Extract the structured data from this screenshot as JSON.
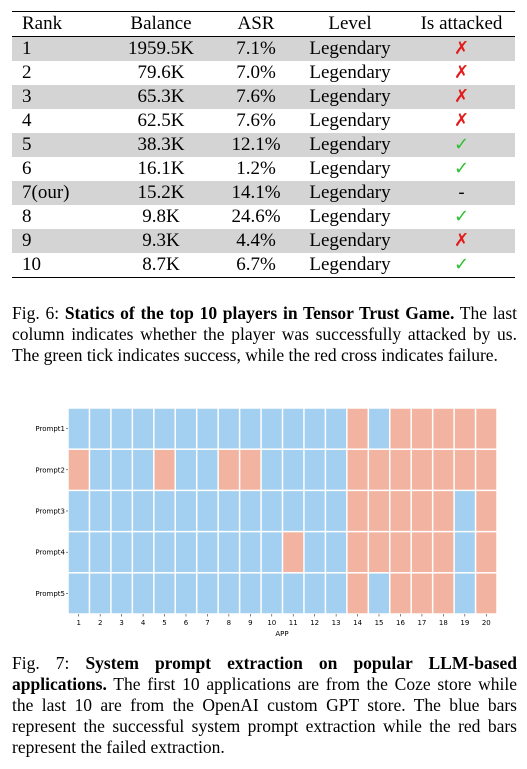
{
  "table": {
    "headers": [
      "Rank",
      "Balance",
      "ASR",
      "Level",
      "Is attacked"
    ],
    "rows": [
      {
        "rank": "1",
        "balance": "1959.5K",
        "asr": "7.1%",
        "level": "Legendary",
        "attacked": "✗",
        "status": "failure"
      },
      {
        "rank": "2",
        "balance": "79.6K",
        "asr": "7.0%",
        "level": "Legendary",
        "attacked": "✗",
        "status": "failure"
      },
      {
        "rank": "3",
        "balance": "65.3K",
        "asr": "7.6%",
        "level": "Legendary",
        "attacked": "✗",
        "status": "failure"
      },
      {
        "rank": "4",
        "balance": "62.5K",
        "asr": "7.6%",
        "level": "Legendary",
        "attacked": "✗",
        "status": "failure"
      },
      {
        "rank": "5",
        "balance": "38.3K",
        "asr": "12.1%",
        "level": "Legendary",
        "attacked": "✓",
        "status": "success"
      },
      {
        "rank": "6",
        "balance": "16.1K",
        "asr": "1.2%",
        "level": "Legendary",
        "attacked": "✓",
        "status": "success"
      },
      {
        "rank": "7(our)",
        "balance": "15.2K",
        "asr": "14.1%",
        "level": "Legendary",
        "attacked": "-",
        "status": "none"
      },
      {
        "rank": "8",
        "balance": "9.8K",
        "asr": "24.6%",
        "level": "Legendary",
        "attacked": "✓",
        "status": "success"
      },
      {
        "rank": "9",
        "balance": "9.3K",
        "asr": "4.4%",
        "level": "Legendary",
        "attacked": "✗",
        "status": "failure"
      },
      {
        "rank": "10",
        "balance": "8.7K",
        "asr": "6.7%",
        "level": "Legendary",
        "attacked": "✓",
        "status": "success"
      }
    ]
  },
  "fig6": {
    "label": "Fig. 6:",
    "title": "Statics of the top 10 players in Tensor Trust Game.",
    "text": "The last column indicates whether the player was successfully attacked by us. The green tick indicates success, while the red cross indicates failure."
  },
  "fig7": {
    "label": "Fig. 7:",
    "title": "System prompt extraction on popular LLM-based applications.",
    "text": "The first 10 applications are from the Coze store while the last 10 are from the OpenAI custom GPT store. The blue bars represent the successful system prompt extraction while the red bars represent the failed extraction."
  },
  "colors": {
    "success": "#a3d0f0",
    "failure": "#f2b3a0",
    "tick_green": "#2fbf2f",
    "cross_red": "#e31b1b",
    "row_shade": "#d4d4d4"
  },
  "chart_data": {
    "type": "heatmap",
    "xlabel": "APP",
    "ylabel": "",
    "x": [
      1,
      2,
      3,
      4,
      5,
      6,
      7,
      8,
      9,
      10,
      11,
      12,
      13,
      14,
      15,
      16,
      17,
      18,
      19,
      20
    ],
    "y": [
      "Prompt1",
      "Prompt2",
      "Prompt3",
      "Prompt4",
      "Prompt5"
    ],
    "values": [
      [
        1,
        1,
        1,
        1,
        1,
        1,
        1,
        1,
        1,
        1,
        1,
        1,
        1,
        0,
        1,
        0,
        0,
        0,
        0,
        0
      ],
      [
        0,
        1,
        1,
        1,
        0,
        1,
        1,
        0,
        0,
        1,
        1,
        1,
        1,
        0,
        0,
        0,
        0,
        0,
        0,
        0
      ],
      [
        1,
        1,
        1,
        1,
        1,
        1,
        1,
        1,
        1,
        1,
        1,
        1,
        1,
        0,
        0,
        0,
        0,
        0,
        1,
        0
      ],
      [
        1,
        1,
        1,
        1,
        1,
        1,
        1,
        1,
        1,
        1,
        0,
        1,
        1,
        0,
        0,
        0,
        0,
        0,
        1,
        0
      ],
      [
        1,
        1,
        1,
        1,
        1,
        1,
        1,
        1,
        1,
        1,
        1,
        1,
        1,
        0,
        1,
        0,
        0,
        0,
        1,
        0
      ]
    ],
    "value_meaning": {
      "1": "successful extraction",
      "0": "failed extraction"
    },
    "grid": false,
    "legend": "none"
  }
}
